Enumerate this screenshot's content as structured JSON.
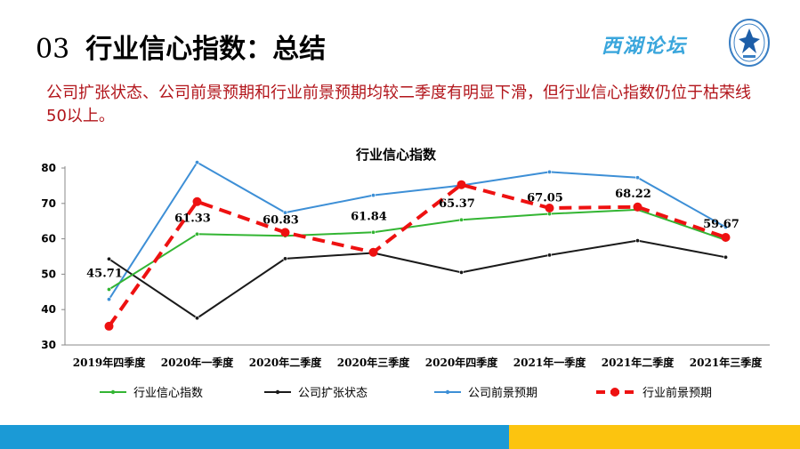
{
  "slide": {
    "number": "03",
    "title": "行业信心指数：总结",
    "summary": "公司扩张状态、公司前景预期和行业前景预期均较二季度有明显下滑，但行业信心指数仍位于枯荣线50以上。",
    "logo_text": "西湖论坛"
  },
  "colors": {
    "title": "#000000",
    "summary": "#b2151b",
    "logo": "#3aa6dc",
    "band_blue": "#1b9ad6",
    "band_yellow": "#fcc40f"
  },
  "chart_data": {
    "type": "line",
    "title": "行业信心指数",
    "xlabel": "",
    "ylabel": "",
    "ylim": [
      30,
      80
    ],
    "yticks": [
      30,
      40,
      50,
      60,
      70,
      80
    ],
    "grid": false,
    "legend_position": "bottom",
    "categories": [
      "2019年四季度",
      "2020年一季度",
      "2020年二季度",
      "2020年三季度",
      "2020年四季度",
      "2021年一季度",
      "2021年二季度",
      "2021年三季度"
    ],
    "series": [
      {
        "name": "行业信心指数",
        "color": "#33b533",
        "style": "solid",
        "marker": "small",
        "values": [
          45.71,
          61.33,
          60.83,
          61.84,
          65.37,
          67.05,
          68.22,
          59.67
        ],
        "data_labels": [
          "45.71",
          "61.33",
          "60.83",
          "61.84",
          "65.37",
          "67.05",
          "68.22",
          "59.67"
        ]
      },
      {
        "name": "公司扩张状态",
        "color": "#1a1a1a",
        "style": "solid",
        "marker": "small",
        "values": [
          54.3,
          37.6,
          54.4,
          56.0,
          50.5,
          55.4,
          59.5,
          54.8
        ]
      },
      {
        "name": "公司前景预期",
        "color": "#3d8fd6",
        "style": "solid",
        "marker": "small",
        "values": [
          42.9,
          81.6,
          67.4,
          72.3,
          75.1,
          78.9,
          77.3,
          63.3
        ]
      },
      {
        "name": "行业前景预期",
        "color": "#ee1111",
        "style": "dashed",
        "marker": "large",
        "values": [
          35.3,
          70.5,
          61.8,
          56.2,
          75.3,
          68.7,
          69.0,
          60.4
        ]
      }
    ]
  }
}
